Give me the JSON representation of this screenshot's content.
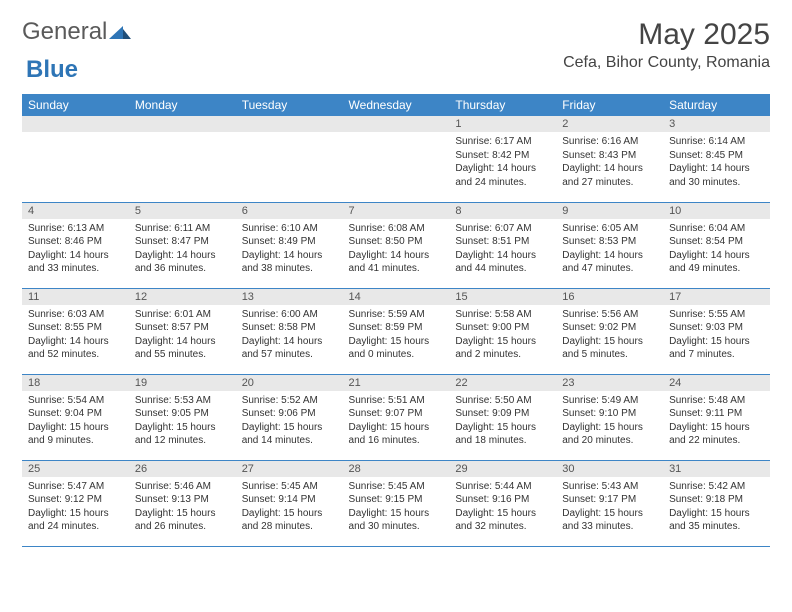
{
  "logo": {
    "text1": "General",
    "text2": "Blue"
  },
  "header": {
    "month": "May 2025",
    "location": "Cefa, Bihor County, Romania"
  },
  "colors": {
    "header_bg": "#3d85c6",
    "header_fg": "#ffffff",
    "daynum_bg": "#e8e8e8",
    "border": "#3d85c6",
    "logo_gray": "#5a5a5a",
    "logo_blue": "#2e75b6"
  },
  "weekdays": [
    "Sunday",
    "Monday",
    "Tuesday",
    "Wednesday",
    "Thursday",
    "Friday",
    "Saturday"
  ],
  "weeks": [
    [
      null,
      null,
      null,
      null,
      {
        "n": "1",
        "sr": "6:17 AM",
        "ss": "8:42 PM",
        "dl": "14 hours and 24 minutes."
      },
      {
        "n": "2",
        "sr": "6:16 AM",
        "ss": "8:43 PM",
        "dl": "14 hours and 27 minutes."
      },
      {
        "n": "3",
        "sr": "6:14 AM",
        "ss": "8:45 PM",
        "dl": "14 hours and 30 minutes."
      }
    ],
    [
      {
        "n": "4",
        "sr": "6:13 AM",
        "ss": "8:46 PM",
        "dl": "14 hours and 33 minutes."
      },
      {
        "n": "5",
        "sr": "6:11 AM",
        "ss": "8:47 PM",
        "dl": "14 hours and 36 minutes."
      },
      {
        "n": "6",
        "sr": "6:10 AM",
        "ss": "8:49 PM",
        "dl": "14 hours and 38 minutes."
      },
      {
        "n": "7",
        "sr": "6:08 AM",
        "ss": "8:50 PM",
        "dl": "14 hours and 41 minutes."
      },
      {
        "n": "8",
        "sr": "6:07 AM",
        "ss": "8:51 PM",
        "dl": "14 hours and 44 minutes."
      },
      {
        "n": "9",
        "sr": "6:05 AM",
        "ss": "8:53 PM",
        "dl": "14 hours and 47 minutes."
      },
      {
        "n": "10",
        "sr": "6:04 AM",
        "ss": "8:54 PM",
        "dl": "14 hours and 49 minutes."
      }
    ],
    [
      {
        "n": "11",
        "sr": "6:03 AM",
        "ss": "8:55 PM",
        "dl": "14 hours and 52 minutes."
      },
      {
        "n": "12",
        "sr": "6:01 AM",
        "ss": "8:57 PM",
        "dl": "14 hours and 55 minutes."
      },
      {
        "n": "13",
        "sr": "6:00 AM",
        "ss": "8:58 PM",
        "dl": "14 hours and 57 minutes."
      },
      {
        "n": "14",
        "sr": "5:59 AM",
        "ss": "8:59 PM",
        "dl": "15 hours and 0 minutes."
      },
      {
        "n": "15",
        "sr": "5:58 AM",
        "ss": "9:00 PM",
        "dl": "15 hours and 2 minutes."
      },
      {
        "n": "16",
        "sr": "5:56 AM",
        "ss": "9:02 PM",
        "dl": "15 hours and 5 minutes."
      },
      {
        "n": "17",
        "sr": "5:55 AM",
        "ss": "9:03 PM",
        "dl": "15 hours and 7 minutes."
      }
    ],
    [
      {
        "n": "18",
        "sr": "5:54 AM",
        "ss": "9:04 PM",
        "dl": "15 hours and 9 minutes."
      },
      {
        "n": "19",
        "sr": "5:53 AM",
        "ss": "9:05 PM",
        "dl": "15 hours and 12 minutes."
      },
      {
        "n": "20",
        "sr": "5:52 AM",
        "ss": "9:06 PM",
        "dl": "15 hours and 14 minutes."
      },
      {
        "n": "21",
        "sr": "5:51 AM",
        "ss": "9:07 PM",
        "dl": "15 hours and 16 minutes."
      },
      {
        "n": "22",
        "sr": "5:50 AM",
        "ss": "9:09 PM",
        "dl": "15 hours and 18 minutes."
      },
      {
        "n": "23",
        "sr": "5:49 AM",
        "ss": "9:10 PM",
        "dl": "15 hours and 20 minutes."
      },
      {
        "n": "24",
        "sr": "5:48 AM",
        "ss": "9:11 PM",
        "dl": "15 hours and 22 minutes."
      }
    ],
    [
      {
        "n": "25",
        "sr": "5:47 AM",
        "ss": "9:12 PM",
        "dl": "15 hours and 24 minutes."
      },
      {
        "n": "26",
        "sr": "5:46 AM",
        "ss": "9:13 PM",
        "dl": "15 hours and 26 minutes."
      },
      {
        "n": "27",
        "sr": "5:45 AM",
        "ss": "9:14 PM",
        "dl": "15 hours and 28 minutes."
      },
      {
        "n": "28",
        "sr": "5:45 AM",
        "ss": "9:15 PM",
        "dl": "15 hours and 30 minutes."
      },
      {
        "n": "29",
        "sr": "5:44 AM",
        "ss": "9:16 PM",
        "dl": "15 hours and 32 minutes."
      },
      {
        "n": "30",
        "sr": "5:43 AM",
        "ss": "9:17 PM",
        "dl": "15 hours and 33 minutes."
      },
      {
        "n": "31",
        "sr": "5:42 AM",
        "ss": "9:18 PM",
        "dl": "15 hours and 35 minutes."
      }
    ]
  ],
  "labels": {
    "sunrise": "Sunrise:",
    "sunset": "Sunset:",
    "daylight": "Daylight:"
  }
}
